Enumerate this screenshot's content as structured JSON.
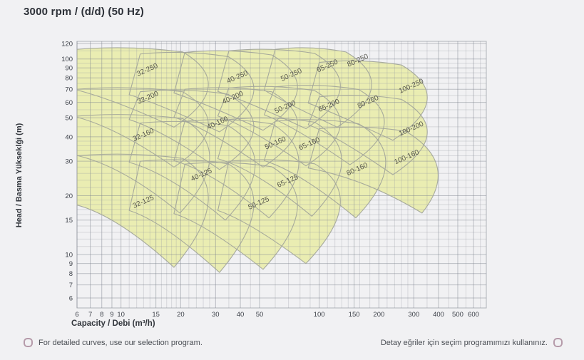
{
  "title": "3000 rpm / (d/d) (50 Hz)",
  "footer": {
    "left": "For detailed curves, use our selection program.",
    "right": "Detay eğriler için seçim programımızı kullanınız."
  },
  "chart_data": {
    "type": "area",
    "title": "3000 rpm / (d/d) (50 Hz)",
    "xlabel": "Capacity / Debi (m³/h)",
    "ylabel": "Head / Basma Yükseklği (m)",
    "x_scale": "log",
    "y_scale": "log",
    "xlim": [
      6,
      700
    ],
    "ylim": [
      5.3,
      123
    ],
    "grid": true,
    "x_ticks_labeled": [
      6,
      7,
      8,
      9,
      10,
      15,
      20,
      30,
      40,
      50,
      100,
      150,
      200,
      300,
      400,
      500,
      600
    ],
    "x_ticks_minor": [
      11,
      12,
      13,
      14,
      16,
      17,
      18,
      19,
      22,
      24,
      26,
      28,
      35,
      45,
      60,
      70,
      80,
      90,
      110,
      120,
      130,
      140,
      160,
      180,
      220,
      240,
      260,
      280,
      350,
      450,
      550,
      650
    ],
    "y_ticks_labeled": [
      6,
      7,
      8,
      9,
      10,
      15,
      20,
      30,
      40,
      50,
      60,
      70,
      80,
      90,
      100,
      120
    ],
    "y_ticks_minor": [
      11,
      12,
      13,
      14,
      16,
      17,
      18,
      19,
      22,
      24,
      26,
      28,
      32,
      34,
      36,
      38,
      45,
      55,
      65,
      75,
      85,
      95,
      110
    ],
    "colors": {
      "region_fill": "#eaedb2",
      "region_stroke": "#a3a69b",
      "grid_minor": "rgba(148,153,163,0.30)",
      "grid_major": "rgba(126,131,143,0.48)",
      "frame": "rgba(120,125,137,0.55)",
      "tick_text": "#3c4048",
      "region_label_text": "#55554c"
    },
    "regions": [
      {
        "label": "32-250",
        "tl": [
          6,
          112
        ],
        "tr": [
          20.5,
          108.6
        ],
        "ctrl": [
          38.9,
          73.9
        ],
        "tip": [
          18.5,
          44.8
        ],
        "bl": [
          6,
          69.4
        ],
        "label_pos": [
          13.7,
          86
        ]
      },
      {
        "label": "32-200",
        "tl": [
          6,
          70
        ],
        "tr": [
          20.5,
          67.9
        ],
        "ctrl": [
          38.9,
          46.2
        ],
        "tip": [
          18.5,
          28
        ],
        "bl": [
          6,
          50.4
        ],
        "label_pos": [
          13.8,
          62
        ]
      },
      {
        "label": "32-160",
        "tl": [
          6,
          51
        ],
        "tr": [
          20.5,
          49.5
        ],
        "ctrl": [
          38.9,
          33.7
        ],
        "tip": [
          19.8,
          16.3
        ],
        "bl": [
          6,
          32.1
        ],
        "label_pos": [
          13.1,
          40
        ]
      },
      {
        "label": "32-125",
        "tl": [
          6,
          32
        ],
        "tr": [
          20.5,
          31
        ],
        "ctrl": [
          38.9,
          21.1
        ],
        "tip": [
          18.5,
          8.6
        ],
        "bl": [
          6,
          17.9
        ],
        "label_pos": [
          13.1,
          18.2
        ]
      },
      {
        "label": "40-250",
        "tl": [
          12.5,
          106
        ],
        "tr": [
          34.7,
          102.8
        ],
        "ctrl": [
          66.1,
          70
        ],
        "tip": [
          31.4,
          42.4
        ],
        "bl": [
          11,
          65.7
        ],
        "label_pos": [
          39,
          79
        ]
      },
      {
        "label": "40-200",
        "tl": [
          12.5,
          68
        ],
        "tr": [
          34.7,
          66
        ],
        "ctrl": [
          66.1,
          44.9
        ],
        "tip": [
          31.4,
          27.2
        ],
        "bl": [
          11,
          49
        ],
        "label_pos": [
          37,
          62
        ]
      },
      {
        "label": "40-160",
        "tl": [
          12.5,
          47
        ],
        "tr": [
          34.7,
          45.6
        ],
        "ctrl": [
          66.1,
          31
        ],
        "tip": [
          33.6,
          15
        ],
        "bl": [
          11,
          29.6
        ],
        "label_pos": [
          31,
          46
        ]
      },
      {
        "label": "40-125",
        "tl": [
          12.5,
          30
        ],
        "tr": [
          34.7,
          29.1
        ],
        "ctrl": [
          66.1,
          19.8
        ],
        "tip": [
          31.4,
          8.1
        ],
        "bl": [
          11,
          16.8
        ],
        "label_pos": [
          25.7,
          25
        ]
      },
      {
        "label": "50-250",
        "tl": [
          21,
          108
        ],
        "tr": [
          57.7,
          104.8
        ],
        "ctrl": [
          109.7,
          71.3
        ],
        "tip": [
          52.1,
          43.2
        ],
        "bl": [
          18.5,
          67
        ],
        "label_pos": [
          73,
          81
        ]
      },
      {
        "label": "50-200",
        "tl": [
          21,
          70
        ],
        "tr": [
          57.7,
          67.9
        ],
        "ctrl": [
          109.7,
          46.2
        ],
        "tip": [
          52.1,
          28
        ],
        "bl": [
          18.5,
          50.4
        ],
        "label_pos": [
          68,
          55.5
        ]
      },
      {
        "label": "50-160",
        "tl": [
          21,
          48
        ],
        "tr": [
          57.7,
          46.6
        ],
        "ctrl": [
          109.7,
          31.7
        ],
        "tip": [
          55.8,
          15.4
        ],
        "bl": [
          18.5,
          30.2
        ],
        "label_pos": [
          60.7,
          36.3
        ]
      },
      {
        "label": "50-125",
        "tl": [
          21,
          29
        ],
        "tr": [
          57.7,
          28.1
        ],
        "ctrl": [
          109.7,
          19.1
        ],
        "tip": [
          52.1,
          8.4
        ],
        "bl": [
          18.5,
          16.2
        ],
        "label_pos": [
          50,
          17.9
        ]
      },
      {
        "label": "65-250",
        "tl": [
          35,
          110
        ],
        "tr": [
          94.9,
          106.7
        ],
        "ctrl": [
          180.5,
          72.6
        ],
        "tip": [
          85.7,
          44
        ],
        "bl": [
          30.8,
          68.2
        ],
        "label_pos": [
          111,
          90
        ]
      },
      {
        "label": "65-200",
        "tl": [
          35,
          71
        ],
        "tr": [
          94.9,
          68.9
        ],
        "ctrl": [
          180.5,
          46.9
        ],
        "tip": [
          85.7,
          28.4
        ],
        "bl": [
          30.8,
          51.1
        ],
        "label_pos": [
          113,
          56.5
        ]
      },
      {
        "label": "65-160",
        "tl": [
          35,
          49
        ],
        "tr": [
          94.9,
          47.5
        ],
        "ctrl": [
          180.5,
          32.3
        ],
        "tip": [
          91.8,
          15.7
        ],
        "bl": [
          30.8,
          30.9
        ],
        "label_pos": [
          90,
          36
        ]
      },
      {
        "label": "65-125",
        "tl": [
          35,
          30
        ],
        "tr": [
          94.9,
          29.1
        ],
        "ctrl": [
          180.5,
          19.8
        ],
        "tip": [
          85.7,
          9
        ],
        "bl": [
          30.8,
          16.8
        ],
        "label_pos": [
          70,
          23.2
        ]
      },
      {
        "label": "80-250",
        "tl": [
          60,
          112
        ],
        "tr": [
          136.4,
          108.6
        ],
        "ctrl": [
          259.6,
          73.9
        ],
        "tip": [
          123.2,
          44.8
        ],
        "bl": [
          52.8,
          69.4
        ],
        "label_pos": [
          158,
          96
        ]
      },
      {
        "label": "80-200",
        "tl": [
          60,
          72
        ],
        "tr": [
          158.1,
          69.8
        ],
        "ctrl": [
          300.9,
          47.5
        ],
        "tip": [
          142.8,
          28.8
        ],
        "bl": [
          52.8,
          51.8
        ],
        "label_pos": [
          178,
          59
        ]
      },
      {
        "label": "80-160",
        "tl": [
          60,
          48
        ],
        "tr": [
          158.1,
          46.6
        ],
        "ctrl": [
          300.9,
          31.7
        ],
        "tip": [
          153,
          15.4
        ],
        "bl": [
          52.8,
          30.2
        ],
        "label_pos": [
          157,
          26.7
        ]
      },
      {
        "label": "100-250",
        "tl": [
          100,
          96
        ],
        "tr": [
          260.4,
          93.1
        ],
        "ctrl": [
          495.6,
          63.4
        ],
        "tip": [
          235.2,
          38.4
        ],
        "bl": [
          88,
          59.5
        ],
        "label_pos": [
          294,
          71
        ]
      },
      {
        "label": "100-200",
        "tl": [
          100,
          64
        ],
        "tr": [
          260.4,
          62.1
        ],
        "ctrl": [
          495.6,
          42.2
        ],
        "tip": [
          235.2,
          25.6
        ],
        "bl": [
          88,
          46.1
        ],
        "label_pos": [
          294,
          43
        ]
      },
      {
        "label": "100-160",
        "tl": [
          100,
          44
        ],
        "tr": [
          272.8,
          42.7
        ],
        "ctrl": [
          519.2,
          29
        ],
        "tip": [
          330,
          16.3
        ],
        "bl": [
          88,
          27.7
        ],
        "label_pos": [
          279,
          30.8
        ]
      }
    ]
  }
}
